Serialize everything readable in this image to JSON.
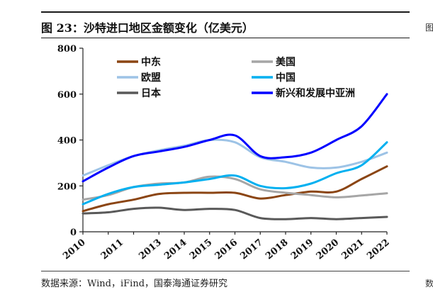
{
  "header": {
    "title": "图 23：沙特进口地区金额变化（亿美元）",
    "source": "数据来源：Wind，iFind，国泰海通证券研究",
    "right_cut_top": "图",
    "right_cut_bottom": "数"
  },
  "chart_data": {
    "type": "line",
    "categories": [
      "2010",
      "2011",
      "2013",
      "2014",
      "2015",
      "2016",
      "2017",
      "2018",
      "2019",
      "2020",
      "2021",
      "2022"
    ],
    "x": [
      2010,
      2011.5,
      2013,
      2014,
      2015,
      2016,
      2017,
      2018,
      2019,
      2020,
      2021,
      2022
    ],
    "ylim": [
      0,
      800
    ],
    "yticks": [
      0,
      200,
      400,
      600,
      800
    ],
    "grid": false,
    "legend_position": "top-left",
    "series": [
      {
        "name": "中东",
        "color": "#8B4513",
        "values": [
          [
            2010,
            90
          ],
          [
            2011,
            120
          ],
          [
            2012,
            140
          ],
          [
            2013,
            165
          ],
          [
            2014,
            170
          ],
          [
            2015,
            170
          ],
          [
            2016,
            170
          ],
          [
            2017,
            145
          ],
          [
            2018,
            160
          ],
          [
            2019,
            175
          ],
          [
            2020,
            175
          ],
          [
            2021,
            230
          ],
          [
            2022,
            285
          ]
        ]
      },
      {
        "name": "美国",
        "color": "#A6A6A6",
        "values": [
          [
            2010,
            140
          ],
          [
            2011,
            160
          ],
          [
            2012,
            195
          ],
          [
            2013,
            210
          ],
          [
            2014,
            215
          ],
          [
            2015,
            240
          ],
          [
            2016,
            230
          ],
          [
            2017,
            185
          ],
          [
            2018,
            170
          ],
          [
            2019,
            160
          ],
          [
            2020,
            150
          ],
          [
            2021,
            158
          ],
          [
            2022,
            168
          ]
        ]
      },
      {
        "name": "欧盟",
        "color": "#9DC3E6",
        "values": [
          [
            2010,
            245
          ],
          [
            2011,
            290
          ],
          [
            2012,
            330
          ],
          [
            2013,
            355
          ],
          [
            2014,
            375
          ],
          [
            2015,
            400
          ],
          [
            2016,
            390
          ],
          [
            2017,
            325
          ],
          [
            2018,
            305
          ],
          [
            2019,
            280
          ],
          [
            2020,
            280
          ],
          [
            2021,
            305
          ],
          [
            2022,
            345
          ]
        ]
      },
      {
        "name": "中国",
        "color": "#00B0F0",
        "values": [
          [
            2010,
            120
          ],
          [
            2011,
            165
          ],
          [
            2012,
            195
          ],
          [
            2013,
            205
          ],
          [
            2014,
            215
          ],
          [
            2015,
            230
          ],
          [
            2016,
            245
          ],
          [
            2017,
            200
          ],
          [
            2018,
            190
          ],
          [
            2019,
            210
          ],
          [
            2020,
            255
          ],
          [
            2021,
            290
          ],
          [
            2022,
            390
          ]
        ]
      },
      {
        "name": "日本",
        "color": "#595959",
        "values": [
          [
            2010,
            80
          ],
          [
            2011,
            85
          ],
          [
            2012,
            100
          ],
          [
            2013,
            105
          ],
          [
            2014,
            95
          ],
          [
            2015,
            100
          ],
          [
            2016,
            95
          ],
          [
            2017,
            60
          ],
          [
            2018,
            55
          ],
          [
            2019,
            60
          ],
          [
            2020,
            55
          ],
          [
            2021,
            60
          ],
          [
            2022,
            65
          ]
        ]
      },
      {
        "name": "新兴和发展中亚洲",
        "color": "#0000FF",
        "values": [
          [
            2010,
            220
          ],
          [
            2011,
            280
          ],
          [
            2012,
            330
          ],
          [
            2013,
            350
          ],
          [
            2014,
            370
          ],
          [
            2015,
            400
          ],
          [
            2016,
            420
          ],
          [
            2017,
            330
          ],
          [
            2018,
            325
          ],
          [
            2019,
            345
          ],
          [
            2020,
            400
          ],
          [
            2021,
            460
          ],
          [
            2022,
            600
          ]
        ]
      }
    ]
  }
}
